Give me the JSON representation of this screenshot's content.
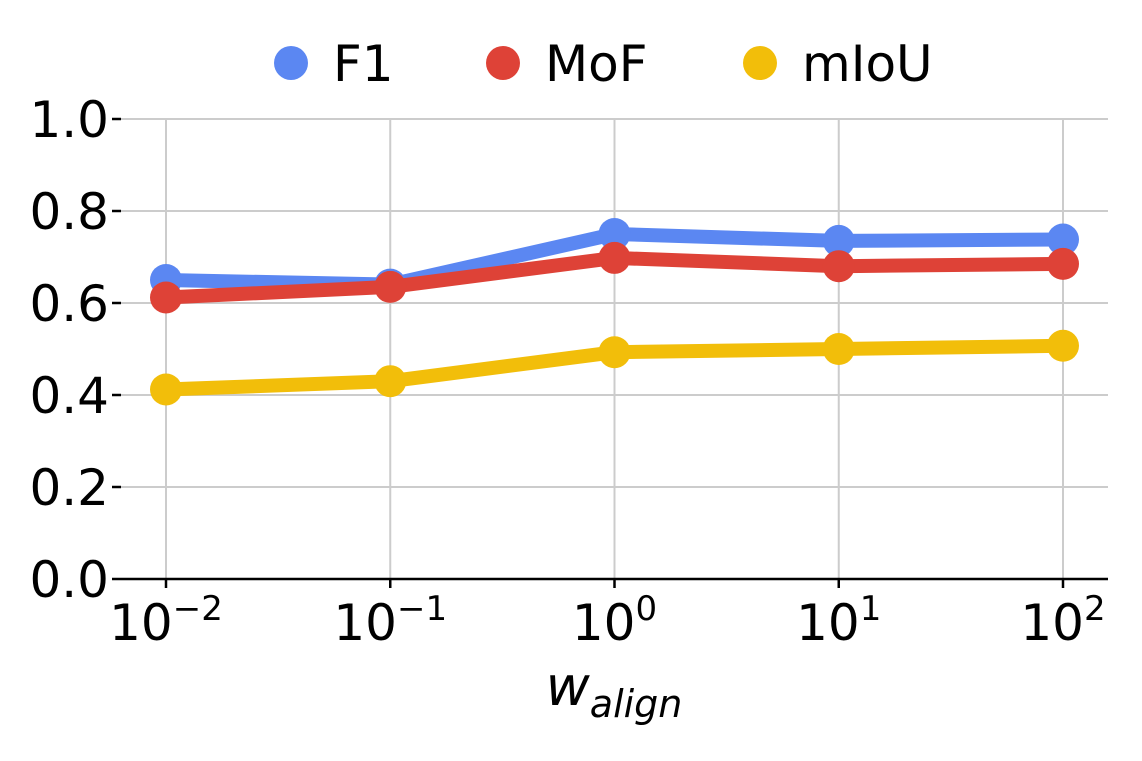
{
  "chart_data": {
    "type": "line",
    "title": "",
    "xlabel": "w",
    "xlabel_subscript": "align",
    "ylabel": "",
    "x_scale": "log",
    "x": [
      0.01,
      0.1,
      1,
      10,
      100
    ],
    "x_tick_labels": [
      {
        "base": "10",
        "exp": "−2"
      },
      {
        "base": "10",
        "exp": "−1"
      },
      {
        "base": "10",
        "exp": "0"
      },
      {
        "base": "10",
        "exp": "1"
      },
      {
        "base": "10",
        "exp": "2"
      }
    ],
    "ylim": [
      0.0,
      1.0
    ],
    "y_ticks": [
      0.0,
      0.2,
      0.4,
      0.6,
      0.8,
      1.0
    ],
    "y_tick_labels": [
      "0.0",
      "0.2",
      "0.4",
      "0.6",
      "0.8",
      "1.0"
    ],
    "grid": true,
    "legend_position": "top-center",
    "series": [
      {
        "name": "F1",
        "color": "#5b87f2",
        "values": [
          0.65,
          0.64,
          0.75,
          0.735,
          0.738
        ]
      },
      {
        "name": "MoF",
        "color": "#de4237",
        "values": [
          0.612,
          0.635,
          0.698,
          0.68,
          0.685
        ]
      },
      {
        "name": "mIoU",
        "color": "#f2be0a",
        "values": [
          0.412,
          0.43,
          0.493,
          0.5,
          0.507
        ]
      }
    ]
  }
}
